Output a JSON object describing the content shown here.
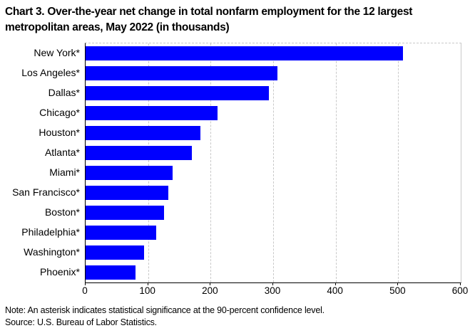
{
  "title": {
    "line1": "Chart 3. Over-the-year net change in total nonfarm employment for the 12 largest",
    "line2": "metropolitan areas, May 2022 (in thousands)"
  },
  "chart_data": {
    "type": "bar",
    "orientation": "horizontal",
    "title": "Chart 3. Over-the-year net change in total nonfarm employment for the 12 largest metropolitan areas, May 2022 (in thousands)",
    "categories": [
      "New York*",
      "Los Angeles*",
      "Dallas*",
      "Chicago*",
      "Houston*",
      "Atlanta*",
      "Miami*",
      "San Francisco*",
      "Boston*",
      "Philadelphia*",
      "Washington*",
      "Phoenix*"
    ],
    "values": [
      508,
      307,
      293,
      211,
      184,
      170,
      139,
      132,
      125,
      113,
      94,
      80
    ],
    "xlabel": "",
    "ylabel": "",
    "xlim": [
      0,
      600
    ],
    "x_ticks": [
      0,
      100,
      200,
      300,
      400,
      500,
      600
    ],
    "grid": "vertical dashed",
    "legend": "none",
    "bar_color": "#0000ff",
    "gridline_color": "#c9c9c9"
  },
  "footer": {
    "note": "Note: An asterisk indicates statistical significance at the 90-percent confidence level.",
    "source": "Source: U.S. Bureau of Labor Statistics."
  }
}
